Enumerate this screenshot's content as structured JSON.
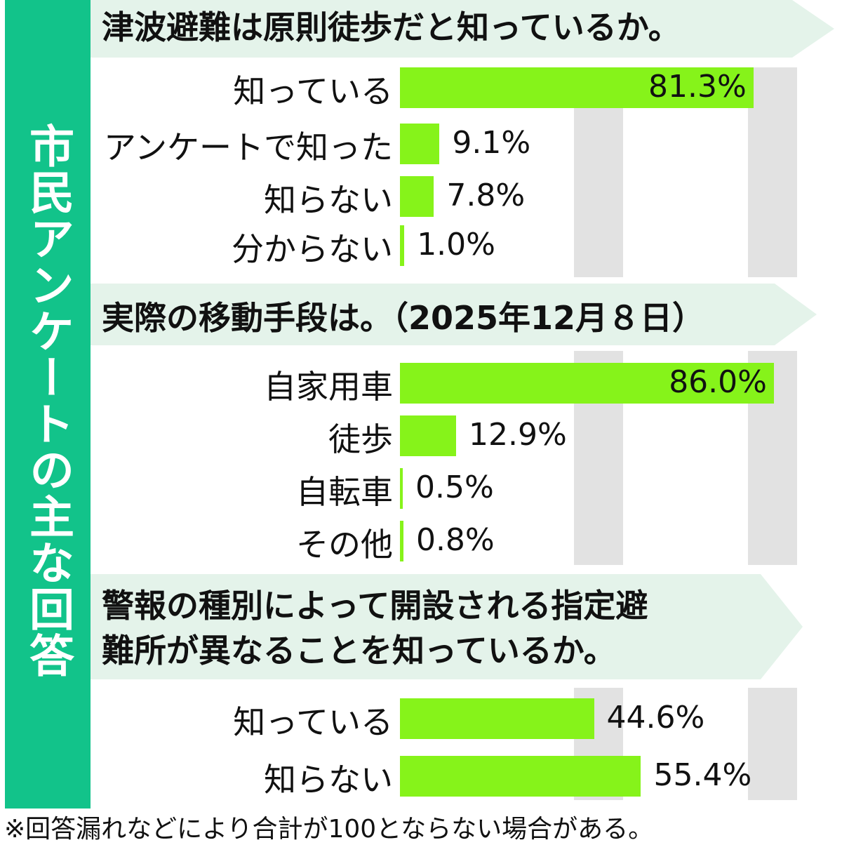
{
  "side_title": "市民アンケートの主な回答",
  "footnote": "※回答漏れなどにより合計が100とならない場合がある。",
  "colors": {
    "side": "#12c38a",
    "banner": "#e4f3ea",
    "bar": "#86f31a",
    "grid": "#e2e2e2"
  },
  "chart_data": [
    {
      "type": "bar",
      "orientation": "horizontal",
      "title": "津波避難は原則徒歩だと知っているか。",
      "categories": [
        "知っている",
        "アンケートで知った",
        "知らない",
        "分からない"
      ],
      "values": [
        81.3,
        9.1,
        7.8,
        1.0
      ],
      "value_labels": [
        "81.3%",
        "9.1%",
        "7.8%",
        "1.0%"
      ],
      "unit": "%",
      "xlim": [
        0,
        100
      ]
    },
    {
      "type": "bar",
      "orientation": "horizontal",
      "title": "実際の移動手段は。（2025年12月８日）",
      "categories": [
        "自家用車",
        "徒歩",
        "自転車",
        "その他"
      ],
      "values": [
        86.0,
        12.9,
        0.5,
        0.8
      ],
      "value_labels": [
        "86.0%",
        "12.9%",
        "0.5%",
        "0.8%"
      ],
      "unit": "%",
      "xlim": [
        0,
        100
      ]
    },
    {
      "type": "bar",
      "orientation": "horizontal",
      "title_lines": [
        "警報の種別によって開設される指定避",
        "難所が異なることを知っているか。"
      ],
      "categories": [
        "知っている",
        "知らない"
      ],
      "values": [
        44.6,
        55.4
      ],
      "value_labels": [
        "44.6%",
        "55.4%"
      ],
      "unit": "%",
      "xlim": [
        0,
        100
      ]
    }
  ]
}
